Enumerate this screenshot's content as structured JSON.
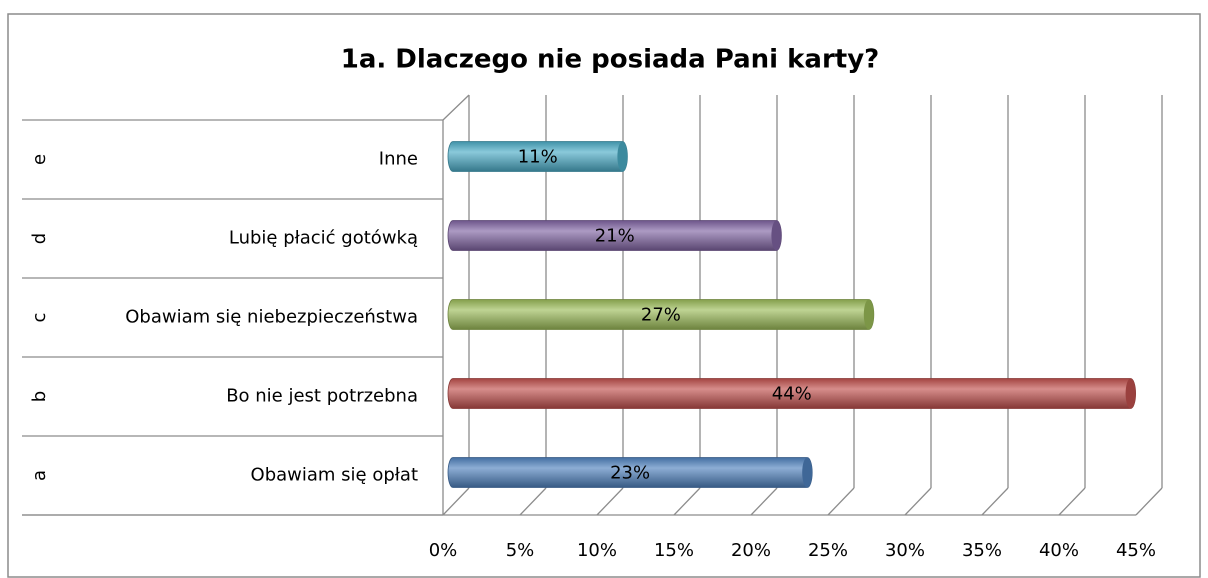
{
  "chart_data": {
    "type": "bar",
    "orientation": "horizontal",
    "style": "3d-cylinder",
    "title": "1a. Dlaczego nie posiada Pani karty?",
    "groups": [
      "a",
      "b",
      "c",
      "d",
      "e"
    ],
    "categories": [
      "Obawiam się opłat",
      "Bo nie jest potrzebna",
      "Obawiam się niebezpieczeństwa",
      "Lubię płacić gotówką",
      "Inne"
    ],
    "values": [
      23,
      44,
      27,
      21,
      11
    ],
    "value_labels": [
      "23%",
      "44%",
      "27%",
      "21%",
      "11%"
    ],
    "colors": [
      "#4f81bd",
      "#c0504d",
      "#9bbb59",
      "#8064a2",
      "#4bacc6"
    ],
    "xlim": [
      0,
      45
    ],
    "xticks": [
      {
        "value": 0,
        "label": "0%"
      },
      {
        "value": 5,
        "label": "5%"
      },
      {
        "value": 10,
        "label": "10%"
      },
      {
        "value": 15,
        "label": "15%"
      },
      {
        "value": 20,
        "label": "20%"
      },
      {
        "value": 25,
        "label": "25%"
      },
      {
        "value": 30,
        "label": "30%"
      },
      {
        "value": 35,
        "label": "35%"
      },
      {
        "value": 40,
        "label": "40%"
      },
      {
        "value": 45,
        "label": "45%"
      }
    ],
    "grid": true
  }
}
